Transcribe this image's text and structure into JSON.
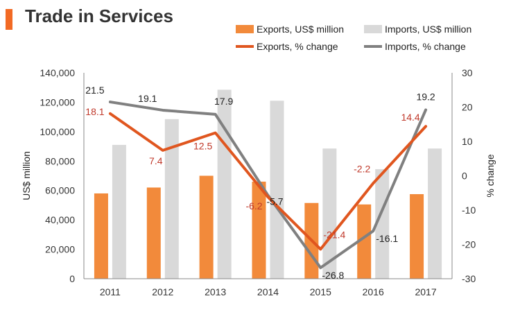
{
  "page": {
    "title": "Trade in Services"
  },
  "colors": {
    "exports_bar": "#f28a3b",
    "imports_bar": "#d9d9d9",
    "exports_line": "#e0561f",
    "imports_line": "#808080",
    "exports_label": "#c0392b",
    "title_accent": "#f26a24"
  },
  "chart_data": {
    "type": "bar",
    "categories": [
      "2011",
      "2012",
      "2013",
      "2014",
      "2015",
      "2016",
      "2017"
    ],
    "series": [
      {
        "name": "Exports, US$ million",
        "type": "bar",
        "axis": "left",
        "values": [
          58000,
          62000,
          70000,
          66000,
          51500,
          50500,
          57500
        ]
      },
      {
        "name": "Imports, US$ million",
        "type": "bar",
        "axis": "left",
        "values": [
          91000,
          108500,
          128500,
          121000,
          88500,
          74500,
          88500
        ]
      },
      {
        "name": "Exports, % change",
        "type": "line",
        "axis": "right",
        "values": [
          18.1,
          7.4,
          12.5,
          -6.2,
          -21.4,
          -2.2,
          14.4
        ],
        "labels": [
          "18.1",
          "7.4",
          "12.5",
          "-6.2",
          "-21.4",
          "-2.2",
          "14.4"
        ]
      },
      {
        "name": "Imports, % change",
        "type": "line",
        "axis": "right",
        "values": [
          21.5,
          19.1,
          17.9,
          -5.7,
          -26.8,
          -16.1,
          19.2
        ],
        "labels": [
          "21.5",
          "19.1",
          "17.9",
          "-5.7",
          "-26.8",
          "-16.1",
          "19.2"
        ]
      }
    ],
    "ylabel": "US$ million",
    "y2label": "% change",
    "ylim": [
      0,
      140000
    ],
    "y2lim": [
      -30,
      30
    ],
    "yticks": [
      "0",
      "20,000",
      "40,000",
      "60,000",
      "80,000",
      "100,000",
      "120,000",
      "140,000"
    ],
    "y2ticks": [
      "-30",
      "-20",
      "-10",
      "0",
      "10",
      "20",
      "30"
    ],
    "grid": false,
    "legend_position": "top-right"
  }
}
